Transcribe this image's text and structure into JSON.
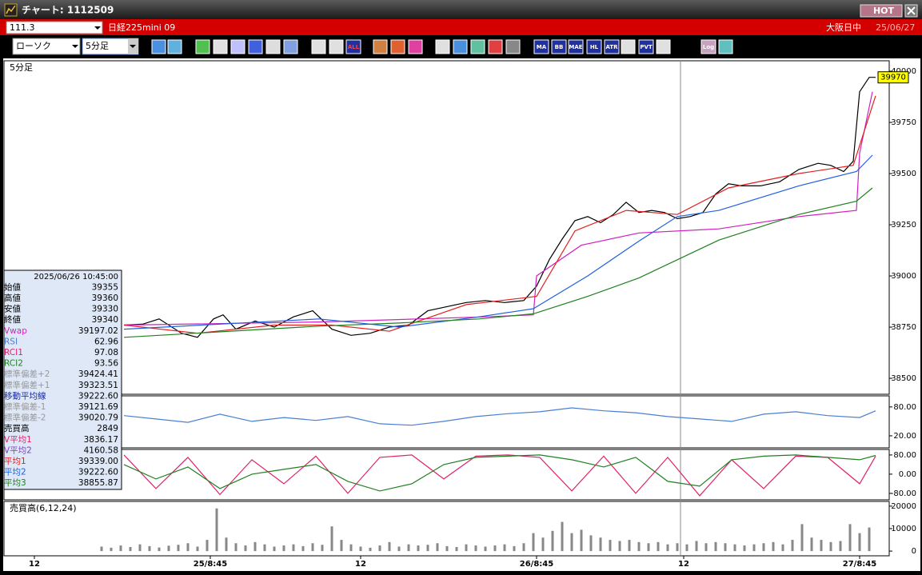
{
  "window": {
    "title": "チャート: 1112509",
    "hot": "HOT"
  },
  "header": {
    "code": "111.3",
    "name": "日経225mini 09",
    "session": "大阪日中",
    "date": "25/06/27"
  },
  "toolbar": {
    "chart_type": "ローソク",
    "interval": "5分足",
    "buttons": [
      "ALL",
      "MA",
      "BB",
      "MAE",
      "HL",
      "ATR",
      "PVT",
      "Log"
    ]
  },
  "info_panel": {
    "datetime": "2025/06/26  10:45:00",
    "rows": [
      {
        "label": "始値",
        "value": "39355",
        "color": "#000000"
      },
      {
        "label": "高値",
        "value": "39360",
        "color": "#000000"
      },
      {
        "label": "安値",
        "value": "39330",
        "color": "#000000"
      },
      {
        "label": "終値",
        "value": "39340",
        "color": "#000000"
      },
      {
        "label": "Vwap",
        "value": "39197.02",
        "color": "#d020c0"
      },
      {
        "label": "RSI",
        "value": "62.96",
        "color": "#4a7fd4"
      },
      {
        "label": "RCI1",
        "value": "97.08",
        "color": "#e0206a"
      },
      {
        "label": "RCI2",
        "value": "93.56",
        "color": "#208020"
      },
      {
        "label": "標準偏差+2",
        "value": "39424.41",
        "color": "#999999"
      },
      {
        "label": "標準偏差+1",
        "value": "39323.51",
        "color": "#999999"
      },
      {
        "label": "移動平均線",
        "value": "39222.60",
        "color": "#1a2aa0"
      },
      {
        "label": "標準偏差-1",
        "value": "39121.69",
        "color": "#999999"
      },
      {
        "label": "標準偏差-2",
        "value": "39020.79",
        "color": "#999999"
      },
      {
        "label": "売買高",
        "value": "2849",
        "color": "#000000"
      },
      {
        "label": "V平均1",
        "value": "3836.17",
        "color": "#e0206a"
      },
      {
        "label": "V平均2",
        "value": "4160.58",
        "color": "#8040c0"
      },
      {
        "label": "平均1",
        "value": "39339.00",
        "color": "#e02020"
      },
      {
        "label": "平均2",
        "value": "39222.60",
        "color": "#2060e0"
      },
      {
        "label": "平均3",
        "value": "38855.87",
        "color": "#208020"
      }
    ]
  },
  "chart_data": [
    {
      "type": "line",
      "label": "5分足",
      "last_price": 39970,
      "xlim": [
        -0.5,
        276.25
      ],
      "xticks": [
        {
          "value": 9,
          "label": "12"
        },
        {
          "value": 64,
          "label": "25/8:45"
        },
        {
          "value": 111,
          "label": "12"
        },
        {
          "value": 166,
          "label": "26/8:45"
        },
        {
          "value": 212,
          "label": "12"
        },
        {
          "value": 267,
          "label": "27/8:45"
        }
      ],
      "ylim": [
        38422,
        40051
      ],
      "yticks": [
        38500,
        38750,
        39000,
        39250,
        39500,
        39750,
        40000
      ],
      "series": [
        {
          "color": "#000000",
          "x": [
            37,
            43,
            48,
            55,
            60,
            65,
            68,
            72,
            78,
            84,
            90,
            96,
            102,
            108,
            114,
            120,
            126,
            132,
            138,
            144,
            150,
            156,
            162,
            166,
            170,
            174,
            178,
            182,
            186,
            190,
            194,
            198,
            202,
            206,
            210,
            214,
            218,
            222,
            226,
            230,
            236,
            242,
            248,
            254,
            258,
            262,
            265,
            267,
            270,
            272
          ],
          "values": [
            38760,
            38765,
            38790,
            38720,
            38700,
            38790,
            38810,
            38740,
            38780,
            38750,
            38800,
            38830,
            38740,
            38710,
            38720,
            38750,
            38760,
            38830,
            38850,
            38870,
            38880,
            38870,
            38880,
            38950,
            39080,
            39180,
            39270,
            39290,
            39260,
            39300,
            39360,
            39310,
            39320,
            39310,
            39280,
            39290,
            39310,
            39400,
            39450,
            39440,
            39440,
            39460,
            39520,
            39550,
            39540,
            39510,
            39560,
            39900,
            39970,
            39970
          ]
        },
        {
          "name": "Vwap",
          "color": "#d020c0",
          "x": [
            37,
            98,
            150,
            165,
            166,
            180,
            198,
            223,
            248,
            266,
            267,
            271
          ],
          "values": [
            38760,
            38775,
            38800,
            38810,
            39000,
            39150,
            39210,
            39230,
            39290,
            39320,
            39600,
            39900
          ]
        },
        {
          "name": "平均1",
          "color": "#e02020",
          "x": [
            37,
            60,
            84,
            102,
            120,
            144,
            166,
            178,
            194,
            210,
            226,
            248,
            265,
            272
          ],
          "values": [
            38760,
            38720,
            38760,
            38760,
            38730,
            38860,
            38900,
            39220,
            39320,
            39300,
            39430,
            39500,
            39540,
            39880
          ]
        },
        {
          "name": "平均2",
          "color": "#2060e0",
          "x": [
            37,
            98,
            123,
            148,
            165,
            182,
            198,
            210,
            223,
            248,
            266,
            271
          ],
          "values": [
            38740,
            38790,
            38750,
            38800,
            38840,
            39000,
            39170,
            39290,
            39320,
            39440,
            39510,
            39590
          ]
        },
        {
          "name": "平均3",
          "color": "#208020",
          "x": [
            37,
            98,
            123,
            148,
            165,
            182,
            198,
            223,
            248,
            266,
            271
          ],
          "values": [
            38700,
            38755,
            38770,
            38790,
            38815,
            38900,
            38990,
            39175,
            39300,
            39365,
            39430
          ]
        }
      ]
    },
    {
      "type": "line",
      "ylim": [
        -5,
        103
      ],
      "yticks": [
        {
          "value": 20,
          "label": "20.00"
        },
        {
          "value": 80,
          "label": "80.00"
        }
      ],
      "series": [
        {
          "name": "RSI",
          "color": "#4a7fd4",
          "x": [
            37,
            47,
            57,
            67,
            77,
            87,
            97,
            107,
            117,
            127,
            137,
            147,
            157,
            167,
            177,
            187,
            197,
            207,
            217,
            227,
            237,
            247,
            257,
            267,
            272
          ],
          "values": [
            62,
            55,
            48,
            65,
            50,
            58,
            52,
            60,
            45,
            42,
            50,
            60,
            66,
            70,
            78,
            72,
            68,
            60,
            55,
            50,
            65,
            70,
            62,
            58,
            72
          ]
        }
      ]
    },
    {
      "type": "line",
      "ylim": [
        -107,
        103
      ],
      "yticks": [
        {
          "value": -80,
          "label": "-80.00"
        },
        {
          "value": 0,
          "label": "0.00"
        },
        {
          "value": 80,
          "label": "80.00"
        }
      ],
      "series": [
        {
          "name": "RCI1",
          "color": "#e0206a",
          "x": [
            37,
            47,
            57,
            67,
            77,
            87,
            97,
            107,
            117,
            127,
            137,
            147,
            157,
            167,
            177,
            187,
            197,
            207,
            217,
            227,
            237,
            247,
            257,
            267,
            272
          ],
          "values": [
            80,
            -60,
            70,
            -85,
            60,
            -40,
            75,
            -80,
            70,
            80,
            -20,
            75,
            80,
            70,
            -70,
            75,
            -80,
            70,
            -90,
            60,
            -60,
            75,
            70,
            -40,
            75
          ]
        },
        {
          "name": "RCI2",
          "color": "#208020",
          "x": [
            37,
            47,
            57,
            67,
            77,
            87,
            97,
            107,
            117,
            127,
            137,
            147,
            157,
            167,
            177,
            187,
            197,
            207,
            217,
            227,
            237,
            247,
            257,
            267,
            272
          ],
          "values": [
            40,
            -20,
            30,
            -60,
            0,
            20,
            40,
            -30,
            -70,
            -40,
            40,
            70,
            75,
            80,
            60,
            30,
            70,
            -30,
            -50,
            60,
            75,
            80,
            70,
            60,
            78
          ]
        }
      ]
    },
    {
      "type": "bar",
      "label": "売買高(6,12,24)",
      "color": "#888888",
      "ylim": [
        -2100,
        22100
      ],
      "yticks": [
        0,
        10000,
        20000
      ],
      "x": [
        30,
        33,
        36,
        39,
        42,
        45,
        48,
        51,
        54,
        57,
        60,
        63,
        66,
        69,
        72,
        75,
        78,
        81,
        84,
        87,
        90,
        93,
        96,
        99,
        102,
        105,
        108,
        111,
        114,
        117,
        120,
        123,
        126,
        129,
        132,
        135,
        138,
        141,
        144,
        147,
        150,
        153,
        156,
        159,
        162,
        165,
        168,
        171,
        174,
        177,
        180,
        183,
        186,
        189,
        192,
        195,
        198,
        201,
        204,
        207,
        210,
        213,
        216,
        219,
        222,
        225,
        228,
        231,
        234,
        237,
        240,
        243,
        246,
        249,
        252,
        255,
        258,
        261,
        264,
        267,
        270
      ],
      "values": [
        2000,
        1500,
        2500,
        1800,
        3000,
        2200,
        1600,
        2400,
        2800,
        3500,
        2000,
        5000,
        19000,
        6000,
        3500,
        2500,
        4000,
        3000,
        2000,
        2500,
        3000,
        2200,
        3500,
        2800,
        11000,
        5000,
        3000,
        2000,
        1500,
        2500,
        4000,
        2000,
        3000,
        2500,
        2800,
        3500,
        2200,
        1800,
        3000,
        2500,
        2000,
        2500,
        3000,
        2200,
        3500,
        8000,
        6000,
        9000,
        13000,
        8000,
        9500,
        7000,
        6000,
        5000,
        4500,
        5000,
        4000,
        3500,
        4000,
        3000,
        3500,
        3000,
        4500,
        3500,
        4000,
        3500,
        3000,
        2500,
        3000,
        3500,
        4000,
        3000,
        5000,
        12000,
        6000,
        5000,
        4000,
        4500,
        12000,
        8000,
        10500
      ]
    }
  ]
}
